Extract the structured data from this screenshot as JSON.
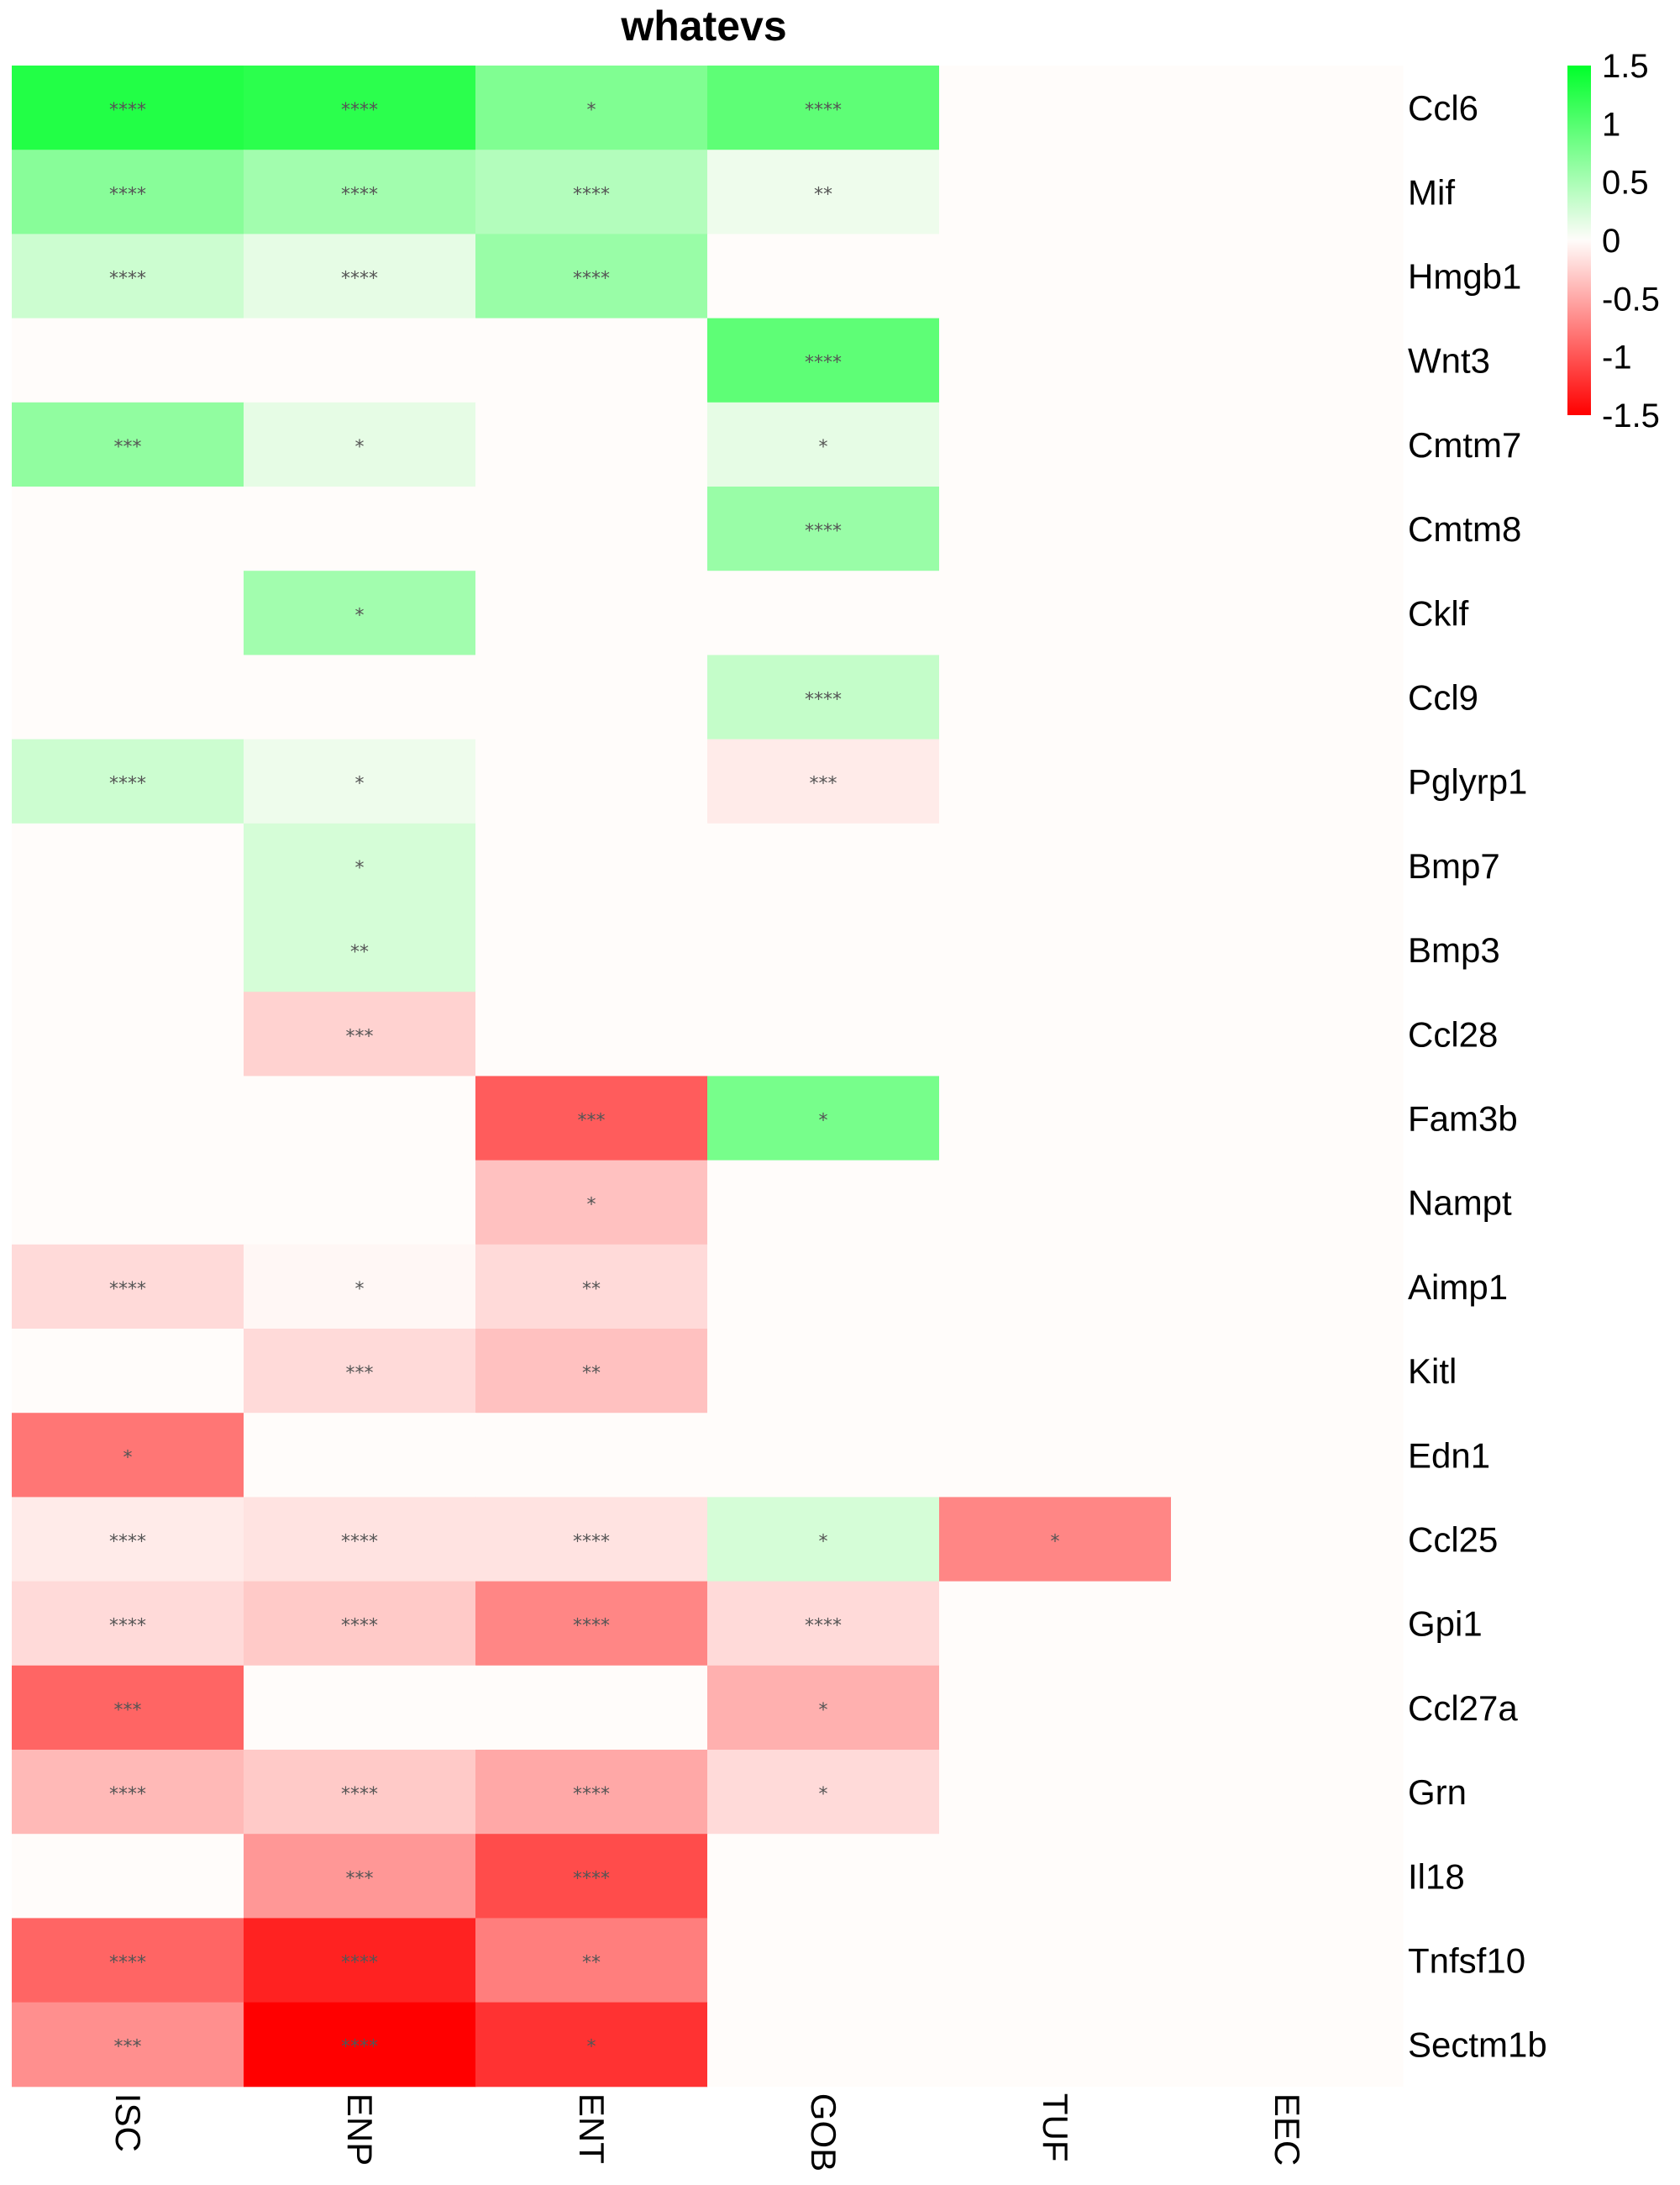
{
  "chart_data": {
    "type": "heatmap",
    "title": "whatevs",
    "columns": [
      "ISC",
      "ENP",
      "ENT",
      "GOB",
      "TUF",
      "EEC"
    ],
    "rows": [
      "Ccl6",
      "Mif",
      "Hmgb1",
      "Wnt3",
      "Cmtm7",
      "Cmtm8",
      "Cklf",
      "Ccl9",
      "Pglyrp1",
      "Bmp7",
      "Bmp3",
      "Ccl28",
      "Fam3b",
      "Nampt",
      "Aimp1",
      "Kitl",
      "Edn1",
      "Ccl25",
      "Gpi1",
      "Ccl27a",
      "Grn",
      "Il18",
      "Tnfsf10",
      "Sectm1b"
    ],
    "values": [
      [
        1.3,
        1.25,
        0.75,
        0.95,
        0,
        0
      ],
      [
        0.7,
        0.55,
        0.45,
        0.1,
        0,
        0
      ],
      [
        0.3,
        0.15,
        0.6,
        0,
        0,
        0
      ],
      [
        0,
        0,
        0,
        0.95,
        0,
        0
      ],
      [
        0.65,
        0.15,
        0,
        0.15,
        0,
        0
      ],
      [
        0,
        0,
        0,
        0.6,
        0,
        0
      ],
      [
        0,
        0.55,
        0,
        0,
        0,
        0
      ],
      [
        0,
        0,
        0,
        0.35,
        0,
        0
      ],
      [
        0.3,
        0.1,
        0,
        -0.1,
        0,
        0
      ],
      [
        0,
        0.25,
        0,
        0,
        0,
        0
      ],
      [
        0,
        0.25,
        0,
        0,
        0,
        0
      ],
      [
        0,
        -0.25,
        0,
        0,
        0,
        0
      ],
      [
        0,
        0,
        -0.95,
        0.8,
        0,
        0
      ],
      [
        0,
        0,
        -0.35,
        0,
        0,
        0
      ],
      [
        -0.2,
        -0.03,
        -0.2,
        0,
        0,
        0
      ],
      [
        0,
        -0.2,
        -0.35,
        0,
        0,
        0
      ],
      [
        -0.8,
        0,
        0,
        0,
        0,
        0
      ],
      [
        -0.1,
        -0.15,
        -0.15,
        0.25,
        -0.7,
        0
      ],
      [
        -0.2,
        -0.3,
        -0.7,
        -0.2,
        0,
        0
      ],
      [
        -0.9,
        0,
        0,
        -0.45,
        0,
        0
      ],
      [
        -0.4,
        -0.3,
        -0.5,
        -0.2,
        0,
        0
      ],
      [
        0,
        -0.6,
        -1.05,
        0,
        0,
        0
      ],
      [
        -0.9,
        -1.3,
        -0.75,
        0,
        0,
        0
      ],
      [
        -0.65,
        -1.5,
        -1.2,
        0,
        0,
        0
      ]
    ],
    "significance": [
      [
        "****",
        "****",
        "*",
        "****",
        "",
        ""
      ],
      [
        "****",
        "****",
        "****",
        "**",
        "",
        ""
      ],
      [
        "****",
        "****",
        "****",
        "",
        "",
        ""
      ],
      [
        "",
        "",
        "",
        "****",
        "",
        ""
      ],
      [
        "***",
        "*",
        "",
        "*",
        "",
        ""
      ],
      [
        "",
        "",
        "",
        "****",
        "",
        ""
      ],
      [
        "",
        "*",
        "",
        "",
        "",
        ""
      ],
      [
        "",
        "",
        "",
        "****",
        "",
        ""
      ],
      [
        "****",
        "*",
        "",
        "***",
        "",
        ""
      ],
      [
        "",
        "*",
        "",
        "",
        "",
        ""
      ],
      [
        "",
        "**",
        "",
        "",
        "",
        ""
      ],
      [
        "",
        "***",
        "",
        "",
        "",
        ""
      ],
      [
        "",
        "",
        "***",
        "*",
        "",
        ""
      ],
      [
        "",
        "",
        "*",
        "",
        "",
        ""
      ],
      [
        "****",
        "*",
        "**",
        "",
        "",
        ""
      ],
      [
        "",
        "***",
        "**",
        "",
        "",
        ""
      ],
      [
        "*",
        "",
        "",
        "",
        "",
        ""
      ],
      [
        "****",
        "****",
        "****",
        "*",
        "*",
        ""
      ],
      [
        "****",
        "****",
        "****",
        "****",
        "",
        ""
      ],
      [
        "***",
        "",
        "",
        "*",
        "",
        ""
      ],
      [
        "****",
        "****",
        "****",
        "*",
        "",
        ""
      ],
      [
        "",
        "***",
        "****",
        "",
        "",
        ""
      ],
      [
        "****",
        "****",
        "**",
        "",
        "",
        ""
      ],
      [
        "***",
        "****",
        "*",
        "",
        "",
        ""
      ]
    ],
    "color_scale": {
      "min": -1.5,
      "max": 1.5,
      "low_color": "#ff0000",
      "mid_color": "#fffcfa",
      "high_color": "#00ff2a",
      "ticks": [
        1.5,
        1,
        0.5,
        0,
        -0.5,
        -1,
        -1.5
      ]
    },
    "legend_position": "top-right"
  }
}
